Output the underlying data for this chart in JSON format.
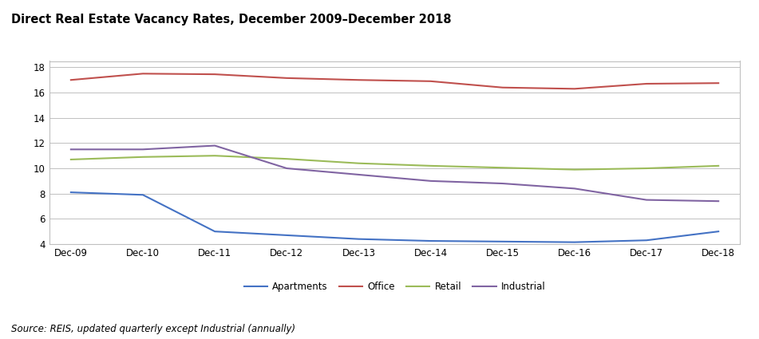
{
  "title": "Direct Real Estate Vacancy Rates, December 2009–December 2018",
  "source_text": "Source: REIS, updated quarterly except Industrial (annually)",
  "x_labels": [
    "Dec-09",
    "Dec-10",
    "Dec-11",
    "Dec-12",
    "Dec-13",
    "Dec-14",
    "Dec-15",
    "Dec-16",
    "Dec-17",
    "Dec-18"
  ],
  "apartments": [
    8.1,
    7.9,
    5.0,
    4.7,
    4.4,
    4.25,
    4.2,
    4.15,
    4.3,
    5.0
  ],
  "office": [
    17.0,
    17.5,
    17.45,
    17.15,
    17.0,
    16.9,
    16.4,
    16.3,
    16.7,
    16.75
  ],
  "retail": [
    10.7,
    10.9,
    11.0,
    10.75,
    10.4,
    10.2,
    10.05,
    9.9,
    10.0,
    10.2
  ],
  "industrial": [
    11.5,
    11.5,
    11.8,
    10.0,
    9.5,
    9.0,
    8.8,
    8.4,
    7.5,
    7.4
  ],
  "apartments_color": "#4472C4",
  "office_color": "#C0504D",
  "retail_color": "#9BBB59",
  "industrial_color": "#8064A2",
  "ylim": [
    4,
    18.5
  ],
  "yticks": [
    4,
    6,
    8,
    10,
    12,
    14,
    16,
    18
  ],
  "background_color": "#FFFFFF",
  "plot_bg_color": "#FFFFFF",
  "grid_color": "#C0C0C0",
  "border_color": "#C0C0C0",
  "title_fontsize": 10.5,
  "axis_fontsize": 8.5,
  "legend_fontsize": 8.5
}
